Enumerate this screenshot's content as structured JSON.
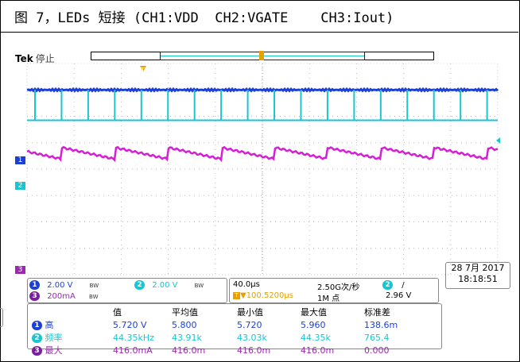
{
  "caption": "图 7，LEDs 短接 (CH1:VDD  CH2:VGATE    CH3:Iout)",
  "scope": {
    "brand": "Tek",
    "run_state": "停止",
    "trigger_marker": "T"
  },
  "channels": [
    {
      "num": "1",
      "scale": "2.00 V",
      "coupling": "BW",
      "color": "#1c3fd6"
    },
    {
      "num": "2",
      "scale": "2.00 V",
      "coupling": "BW",
      "color": "#19c6d0"
    },
    {
      "num": "3",
      "scale": "200mA",
      "coupling": "BW",
      "color": "#9c27b0"
    }
  ],
  "horizontal": {
    "timebase": "40.0µs",
    "sample_rate": "2.50G次/秒",
    "trigger_delay": "▼100.5200µs",
    "record_length": "1M 点",
    "trigger_channel": "2",
    "trigger_slope": "/",
    "trigger_level": "2.96 V"
  },
  "measurements": {
    "headers": [
      "值",
      "平均值",
      "最小值",
      "最大值",
      "标准差"
    ],
    "rows": [
      {
        "ch": "1",
        "name": "高",
        "values": [
          "5.720 V",
          "5.800",
          "5.720",
          "5.960",
          "138.6m"
        ]
      },
      {
        "ch": "2",
        "name": "频率",
        "values": [
          "44.35kHz",
          "43.91k",
          "43.03k",
          "44.35k",
          "765.4"
        ]
      },
      {
        "ch": "3",
        "name": "最大",
        "values": [
          "416.0mA",
          "416.0m",
          "416.0m",
          "416.0m",
          "0.000"
        ]
      }
    ]
  },
  "datetime": {
    "date": "28 7月 2017",
    "time": "18:18:51"
  },
  "waveforms": {
    "pulse_period_div": 0.565,
    "ch1_level_div": 1.0,
    "ch2_base_div": 2.15,
    "ch2_pulse_top_div": 0.15,
    "ch3_base_div": 3.4,
    "ch3_ramp_div": 0.2
  }
}
